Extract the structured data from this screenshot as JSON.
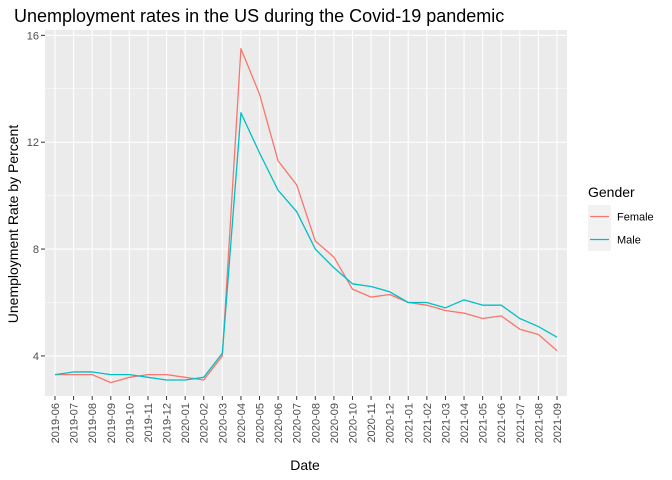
{
  "chart_data": {
    "type": "line",
    "title": "Unemployment rates in the US during the Covid-19 pandemic",
    "xlabel": "Date",
    "ylabel": "Unemployment Rate by Percent",
    "ylim": [
      2.5,
      16.2
    ],
    "yticks": [
      4,
      8,
      12,
      16
    ],
    "grid": true,
    "legend": {
      "title": "Gender",
      "placement": "right"
    },
    "x": [
      "2019-06",
      "2019-07",
      "2019-08",
      "2019-09",
      "2019-10",
      "2019-11",
      "2019-12",
      "2020-01",
      "2020-02",
      "2020-03",
      "2020-04",
      "2020-05",
      "2020-06",
      "2020-07",
      "2020-08",
      "2020-09",
      "2020-10",
      "2020-11",
      "2020-12",
      "2021-01",
      "2021-02",
      "2021-03",
      "2021-04",
      "2021-05",
      "2021-06",
      "2021-07",
      "2021-08",
      "2021-09"
    ],
    "series": [
      {
        "name": "Female",
        "color": "#F8766D",
        "values": [
          3.3,
          3.3,
          3.3,
          3.0,
          3.2,
          3.3,
          3.3,
          3.2,
          3.1,
          4.0,
          15.5,
          13.8,
          11.3,
          10.4,
          8.3,
          7.7,
          6.5,
          6.2,
          6.3,
          6.0,
          5.9,
          5.7,
          5.6,
          5.4,
          5.5,
          5.0,
          4.8,
          4.2
        ]
      },
      {
        "name": "Male",
        "color": "#00BFC4",
        "values": [
          3.3,
          3.4,
          3.4,
          3.3,
          3.3,
          3.2,
          3.1,
          3.1,
          3.2,
          4.1,
          13.1,
          11.6,
          10.2,
          9.4,
          8.0,
          7.3,
          6.7,
          6.6,
          6.4,
          6.0,
          6.0,
          5.8,
          6.1,
          5.9,
          5.9,
          5.4,
          5.1,
          4.7
        ]
      }
    ]
  }
}
